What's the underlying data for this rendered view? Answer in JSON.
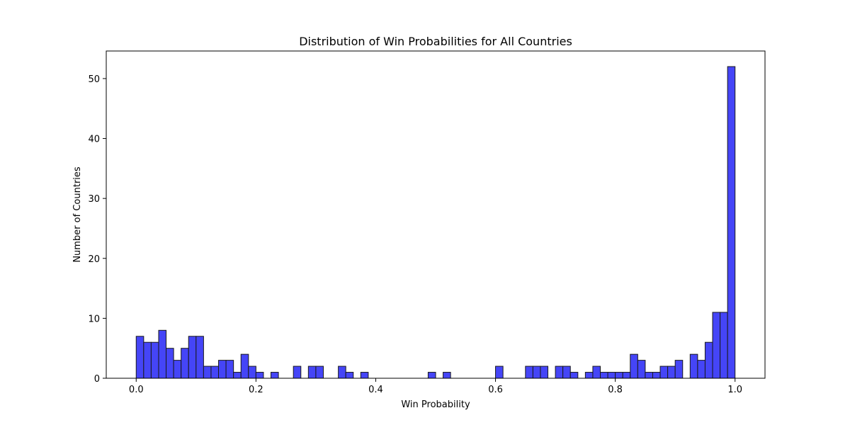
{
  "chart_data": {
    "type": "bar",
    "title": "Distribution of Win Probabilities for All Countries",
    "xlabel": "Win Probability",
    "ylabel": "Number of Countries",
    "xlim": [
      -0.05,
      1.05
    ],
    "ylim": [
      0,
      54.6
    ],
    "xticks": [
      0.0,
      0.2,
      0.4,
      0.6,
      0.8,
      1.0
    ],
    "xtick_labels": [
      "0.0",
      "0.2",
      "0.4",
      "0.6",
      "0.8",
      "1.0"
    ],
    "yticks": [
      0,
      10,
      20,
      30,
      40,
      50
    ],
    "ytick_labels": [
      "0",
      "10",
      "20",
      "30",
      "40",
      "50"
    ],
    "bin_range": [
      0.0,
      1.0
    ],
    "bin_count": 80,
    "grid": false,
    "bar_color": "#4545f7",
    "bar_edge_color": "#1a1a1a",
    "values": [
      7,
      6,
      6,
      8,
      5,
      3,
      5,
      7,
      7,
      2,
      2,
      3,
      3,
      1,
      4,
      2,
      1,
      0,
      1,
      0,
      0,
      2,
      0,
      2,
      2,
      0,
      0,
      2,
      1,
      0,
      1,
      0,
      0,
      0,
      0,
      0,
      0,
      0,
      0,
      1,
      0,
      1,
      0,
      0,
      0,
      0,
      0,
      0,
      2,
      0,
      0,
      0,
      2,
      2,
      2,
      0,
      2,
      2,
      1,
      0,
      1,
      2,
      1,
      1,
      1,
      1,
      4,
      3,
      1,
      1,
      2,
      2,
      3,
      0,
      4,
      3,
      6,
      11,
      11,
      52
    ]
  }
}
